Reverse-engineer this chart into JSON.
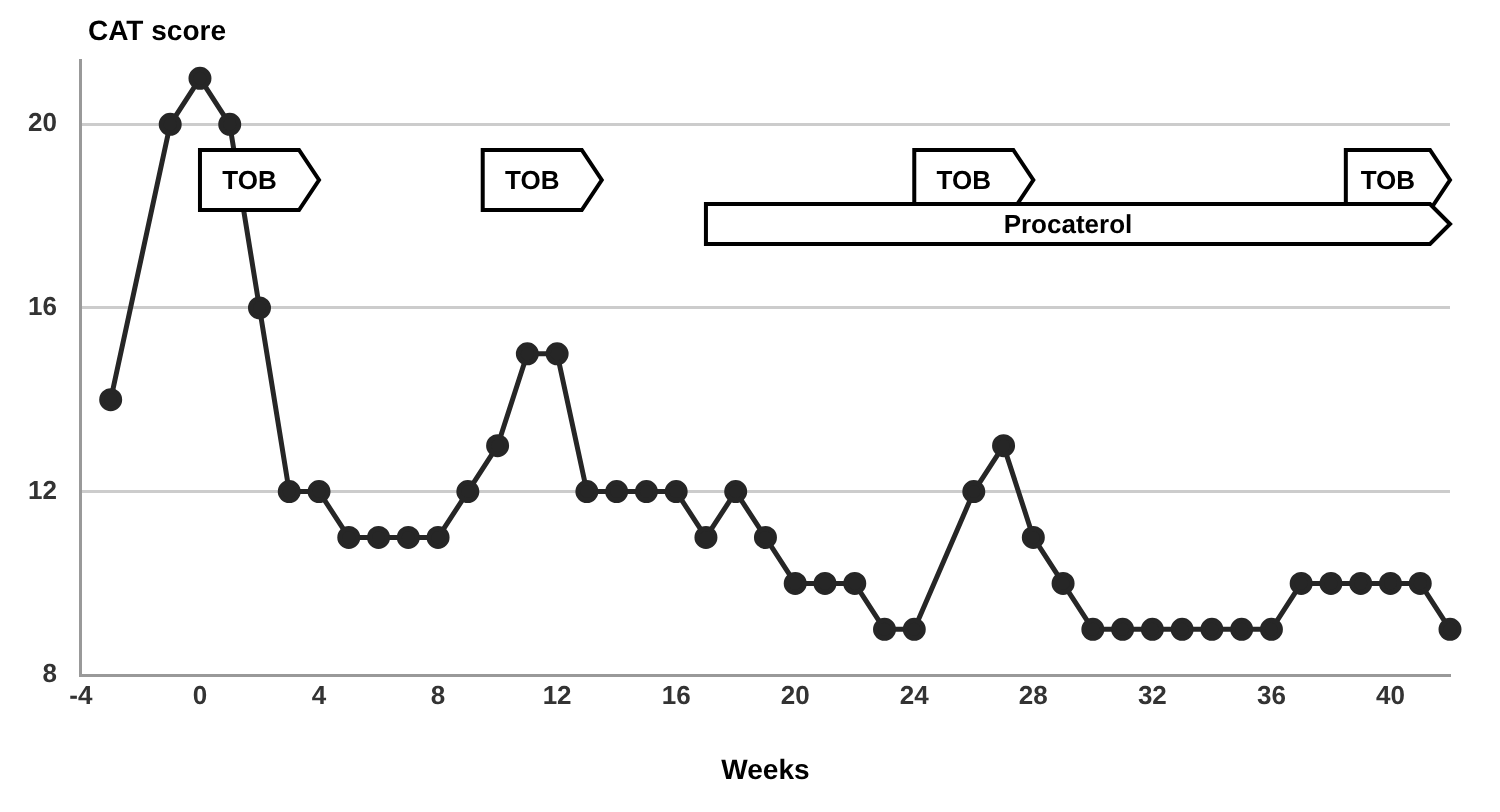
{
  "chart_data": {
    "type": "line",
    "xlabel": "Weeks",
    "ylabel": "CAT score",
    "x": [
      -3,
      -1,
      0,
      1,
      2,
      3,
      4,
      5,
      6,
      7,
      8,
      9,
      10,
      11,
      12,
      13,
      14,
      15,
      16,
      17,
      18,
      19,
      20,
      21,
      22,
      23,
      24,
      26,
      27,
      28,
      29,
      30,
      31,
      32,
      33,
      34,
      35,
      36,
      37,
      38,
      39,
      40,
      41,
      42
    ],
    "values": [
      14,
      20,
      21,
      20,
      16,
      12,
      12,
      11,
      11,
      11,
      11,
      12,
      13,
      15,
      15,
      12,
      12,
      12,
      12,
      11,
      12,
      11,
      10,
      10,
      10,
      9,
      9,
      12,
      13,
      11,
      10,
      9,
      9,
      9,
      9,
      9,
      9,
      9,
      10,
      10,
      10,
      10,
      10,
      9
    ],
    "color": "#262626",
    "marker": "circle",
    "line_style": "solid",
    "xlim": [
      -4,
      42
    ],
    "xticks": [
      -4,
      0,
      4,
      8,
      12,
      16,
      20,
      24,
      28,
      32,
      36,
      40
    ],
    "ylim": [
      8,
      21.4
    ],
    "yticks": [
      8,
      12,
      16,
      20
    ],
    "grid": "y",
    "bands": [
      {
        "axis": "x",
        "from": 0,
        "to": 4,
        "label": "TOB"
      },
      {
        "axis": "x",
        "from": 9.5,
        "to": 13.5,
        "label": "TOB"
      },
      {
        "axis": "x",
        "from": 24,
        "to": 28,
        "label": "TOB"
      },
      {
        "axis": "x",
        "from": 38.5,
        "to": 42,
        "label": "TOB"
      },
      {
        "axis": "x",
        "from": 17,
        "to": 42,
        "label": "Procaterol"
      }
    ]
  }
}
